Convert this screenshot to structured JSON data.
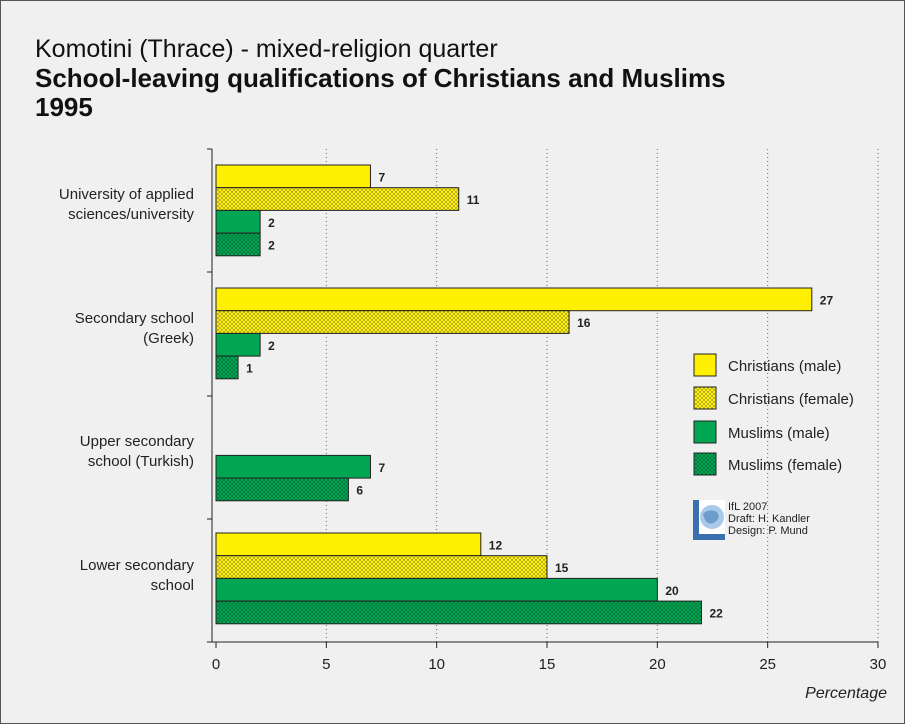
{
  "title": {
    "line1": "Komotini (Thrace) - mixed-religion quarter",
    "line2": "School-leaving qualifications of Christians and Muslims",
    "line3": "1995"
  },
  "colors": {
    "yellow": "#ffef00",
    "green": "#00a651",
    "dot": "#555555"
  },
  "credit": {
    "line1": "IfL 2007",
    "line2": "Draft: H. Kandler",
    "line3": "Design: P. Mund",
    "logo_icon": "globe-logo-icon"
  },
  "chart_data": {
    "type": "bar",
    "orientation": "horizontal",
    "categories": [
      [
        "University of applied",
        "sciences/university"
      ],
      [
        "Secondary school",
        "(Greek)"
      ],
      [
        "Upper secondary",
        "school (Turkish)"
      ],
      [
        "Lower secondary",
        "school"
      ]
    ],
    "series": [
      {
        "name": "Christians (male)",
        "color": "yellow",
        "pattern": "solid",
        "values": [
          7,
          27,
          null,
          12
        ]
      },
      {
        "name": "Christians (female)",
        "color": "yellow",
        "pattern": "dotted",
        "values": [
          11,
          16,
          null,
          15
        ]
      },
      {
        "name": "Muslims (male)",
        "color": "green",
        "pattern": "solid",
        "values": [
          2,
          2,
          7,
          20
        ]
      },
      {
        "name": "Muslims (female)",
        "color": "green",
        "pattern": "dotted",
        "values": [
          2,
          1,
          6,
          22
        ]
      }
    ],
    "xlabel": "Percentage",
    "xlim": [
      0,
      30
    ],
    "xticks": [
      0,
      5,
      10,
      15,
      20,
      25,
      30
    ],
    "grid": "vertical dotted",
    "legend_position": "right"
  }
}
